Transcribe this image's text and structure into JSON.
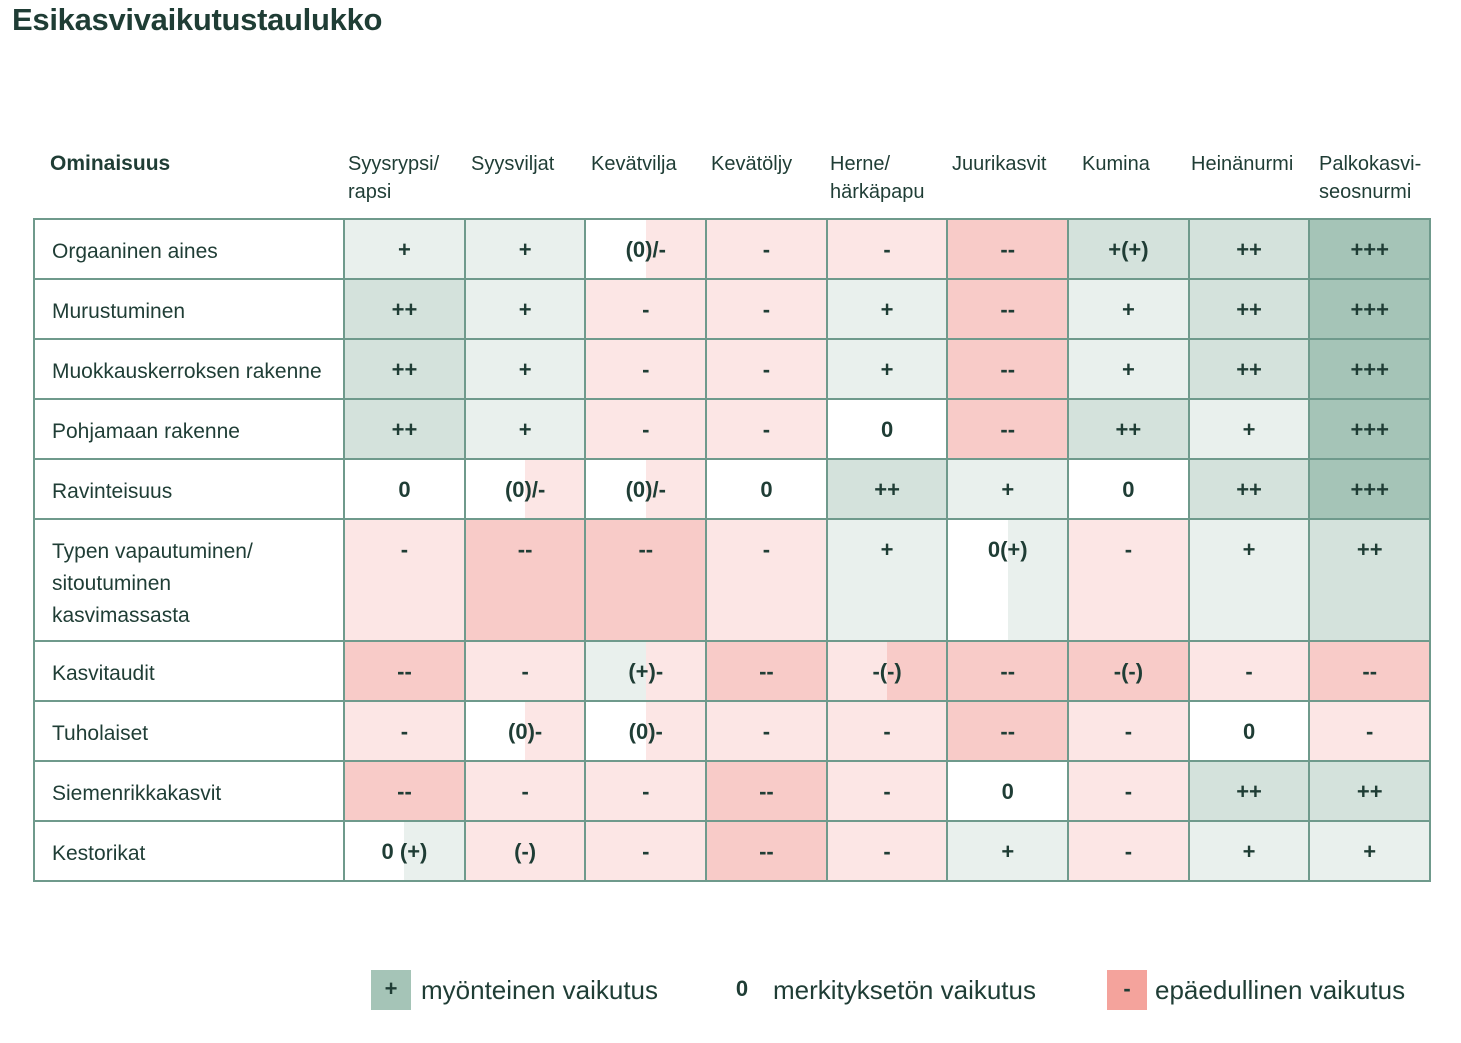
{
  "title": "Esikasvivaikutustaulukko",
  "colors": {
    "pos1": "#e9f0ed",
    "pos2": "#d4e2dc",
    "pos3": "#a5c4b7",
    "neutral": "#ffffff",
    "neg1": "#fce6e5",
    "neg2": "#f8cbc8",
    "border": "#6f9a8c",
    "text": "#1f3d35"
  },
  "header": {
    "first": "Ominaisuus",
    "crops": [
      [
        "Syysrypsi/",
        "rapsi"
      ],
      [
        "Syysviljat",
        ""
      ],
      [
        "Kevätvilja",
        ""
      ],
      [
        "Kevätöljy",
        ""
      ],
      [
        "Herne/",
        "härkäpapu"
      ],
      [
        "Juurikasvit",
        ""
      ],
      [
        "Kumina",
        ""
      ],
      [
        "Heinänurmi",
        ""
      ],
      [
        "Palkokasvi-",
        "seosnurmi"
      ]
    ]
  },
  "rows": [
    {
      "label": [
        "Orgaaninen aines"
      ],
      "cells": [
        {
          "v": "+",
          "bg": [
            "pos1",
            "pos1"
          ]
        },
        {
          "v": "+",
          "bg": [
            "pos1",
            "pos1"
          ]
        },
        {
          "v": "(0)/-",
          "bg": [
            "neutral",
            "neg1"
          ]
        },
        {
          "v": "-",
          "bg": [
            "neg1",
            "neg1"
          ]
        },
        {
          "v": "-",
          "bg": [
            "neg1",
            "neg1"
          ]
        },
        {
          "v": "--",
          "bg": [
            "neg2",
            "neg2"
          ]
        },
        {
          "v": "+(+)",
          "bg": [
            "pos2",
            "pos2"
          ]
        },
        {
          "v": "++",
          "bg": [
            "pos2",
            "pos2"
          ]
        },
        {
          "v": "+++",
          "bg": [
            "pos3",
            "pos3"
          ]
        }
      ]
    },
    {
      "label": [
        "Murustuminen"
      ],
      "cells": [
        {
          "v": "++",
          "bg": [
            "pos2",
            "pos2"
          ]
        },
        {
          "v": "+",
          "bg": [
            "pos1",
            "pos1"
          ]
        },
        {
          "v": "-",
          "bg": [
            "neg1",
            "neg1"
          ]
        },
        {
          "v": "-",
          "bg": [
            "neg1",
            "neg1"
          ]
        },
        {
          "v": "+",
          "bg": [
            "pos1",
            "pos1"
          ]
        },
        {
          "v": "--",
          "bg": [
            "neg2",
            "neg2"
          ]
        },
        {
          "v": "+",
          "bg": [
            "pos1",
            "pos1"
          ]
        },
        {
          "v": "++",
          "bg": [
            "pos2",
            "pos2"
          ]
        },
        {
          "v": "+++",
          "bg": [
            "pos3",
            "pos3"
          ]
        }
      ]
    },
    {
      "label": [
        "Muokkauskerroksen rakenne"
      ],
      "cells": [
        {
          "v": "++",
          "bg": [
            "pos2",
            "pos2"
          ]
        },
        {
          "v": "+",
          "bg": [
            "pos1",
            "pos1"
          ]
        },
        {
          "v": "-",
          "bg": [
            "neg1",
            "neg1"
          ]
        },
        {
          "v": "-",
          "bg": [
            "neg1",
            "neg1"
          ]
        },
        {
          "v": "+",
          "bg": [
            "pos1",
            "pos1"
          ]
        },
        {
          "v": "--",
          "bg": [
            "neg2",
            "neg2"
          ]
        },
        {
          "v": "+",
          "bg": [
            "pos1",
            "pos1"
          ]
        },
        {
          "v": "++",
          "bg": [
            "pos2",
            "pos2"
          ]
        },
        {
          "v": "+++",
          "bg": [
            "pos3",
            "pos3"
          ]
        }
      ]
    },
    {
      "label": [
        "Pohjamaan rakenne"
      ],
      "cells": [
        {
          "v": "++",
          "bg": [
            "pos2",
            "pos2"
          ]
        },
        {
          "v": "+",
          "bg": [
            "pos1",
            "pos1"
          ]
        },
        {
          "v": "-",
          "bg": [
            "neg1",
            "neg1"
          ]
        },
        {
          "v": "-",
          "bg": [
            "neg1",
            "neg1"
          ]
        },
        {
          "v": "0",
          "bg": [
            "neutral",
            "neutral"
          ]
        },
        {
          "v": "--",
          "bg": [
            "neg2",
            "neg2"
          ]
        },
        {
          "v": "++",
          "bg": [
            "pos2",
            "pos2"
          ]
        },
        {
          "v": "+",
          "bg": [
            "pos1",
            "pos1"
          ]
        },
        {
          "v": "+++",
          "bg": [
            "pos3",
            "pos3"
          ]
        }
      ]
    },
    {
      "label": [
        "Ravinteisuus"
      ],
      "cells": [
        {
          "v": "0",
          "bg": [
            "neutral",
            "neutral"
          ]
        },
        {
          "v": "(0)/-",
          "bg": [
            "neutral",
            "neg1"
          ]
        },
        {
          "v": "(0)/-",
          "bg": [
            "neutral",
            "neg1"
          ]
        },
        {
          "v": "0",
          "bg": [
            "neutral",
            "neutral"
          ]
        },
        {
          "v": "++",
          "bg": [
            "pos2",
            "pos2"
          ]
        },
        {
          "v": "+",
          "bg": [
            "pos1",
            "pos1"
          ]
        },
        {
          "v": "0",
          "bg": [
            "neutral",
            "neutral"
          ]
        },
        {
          "v": "++",
          "bg": [
            "pos2",
            "pos2"
          ]
        },
        {
          "v": "+++",
          "bg": [
            "pos3",
            "pos3"
          ]
        }
      ]
    },
    {
      "label": [
        "Typen vapautuminen/",
        "sitoutuminen",
        "kasvimassasta"
      ],
      "cells": [
        {
          "v": "-",
          "bg": [
            "neg1",
            "neg1"
          ]
        },
        {
          "v": "--",
          "bg": [
            "neg2",
            "neg2"
          ]
        },
        {
          "v": "--",
          "bg": [
            "neg2",
            "neg2"
          ]
        },
        {
          "v": "-",
          "bg": [
            "neg1",
            "neg1"
          ]
        },
        {
          "v": "+",
          "bg": [
            "pos1",
            "pos1"
          ]
        },
        {
          "v": "0(+)",
          "bg": [
            "neutral",
            "pos1"
          ]
        },
        {
          "v": "-",
          "bg": [
            "neg1",
            "neg1"
          ]
        },
        {
          "v": "+",
          "bg": [
            "pos1",
            "pos1"
          ]
        },
        {
          "v": "++",
          "bg": [
            "pos2",
            "pos2"
          ]
        }
      ]
    },
    {
      "label": [
        "Kasvitaudit"
      ],
      "cells": [
        {
          "v": "--",
          "bg": [
            "neg2",
            "neg2"
          ]
        },
        {
          "v": "-",
          "bg": [
            "neg1",
            "neg1"
          ]
        },
        {
          "v": "(+)-",
          "bg": [
            "pos1",
            "neg1"
          ]
        },
        {
          "v": "--",
          "bg": [
            "neg2",
            "neg2"
          ]
        },
        {
          "v": "-(-)",
          "bg": [
            "neg1",
            "neg2"
          ]
        },
        {
          "v": "--",
          "bg": [
            "neg2",
            "neg2"
          ]
        },
        {
          "v": "-(-)",
          "bg": [
            "neg2",
            "neg2"
          ]
        },
        {
          "v": "-",
          "bg": [
            "neg1",
            "neg1"
          ]
        },
        {
          "v": "--",
          "bg": [
            "neg2",
            "neg2"
          ]
        }
      ]
    },
    {
      "label": [
        "Tuholaiset"
      ],
      "cells": [
        {
          "v": "-",
          "bg": [
            "neg1",
            "neg1"
          ]
        },
        {
          "v": "(0)-",
          "bg": [
            "neutral",
            "neg1"
          ]
        },
        {
          "v": "(0)-",
          "bg": [
            "neutral",
            "neg1"
          ]
        },
        {
          "v": "-",
          "bg": [
            "neg1",
            "neg1"
          ]
        },
        {
          "v": "-",
          "bg": [
            "neg1",
            "neg1"
          ]
        },
        {
          "v": "--",
          "bg": [
            "neg2",
            "neg2"
          ]
        },
        {
          "v": "-",
          "bg": [
            "neg1",
            "neg1"
          ]
        },
        {
          "v": "0",
          "bg": [
            "neutral",
            "neutral"
          ]
        },
        {
          "v": "-",
          "bg": [
            "neg1",
            "neg1"
          ]
        }
      ]
    },
    {
      "label": [
        "Siemenrikkakasvit"
      ],
      "cells": [
        {
          "v": "--",
          "bg": [
            "neg2",
            "neg2"
          ]
        },
        {
          "v": "-",
          "bg": [
            "neg1",
            "neg1"
          ]
        },
        {
          "v": "-",
          "bg": [
            "neg1",
            "neg1"
          ]
        },
        {
          "v": "--",
          "bg": [
            "neg2",
            "neg2"
          ]
        },
        {
          "v": "-",
          "bg": [
            "neg1",
            "neg1"
          ]
        },
        {
          "v": "0",
          "bg": [
            "neutral",
            "neutral"
          ]
        },
        {
          "v": "-",
          "bg": [
            "neg1",
            "neg1"
          ]
        },
        {
          "v": "++",
          "bg": [
            "pos2",
            "pos2"
          ]
        },
        {
          "v": "++",
          "bg": [
            "pos2",
            "pos2"
          ]
        }
      ]
    },
    {
      "label": [
        "Kestorikat"
      ],
      "cells": [
        {
          "v": "0 (+)",
          "bg": [
            "neutral",
            "pos1"
          ]
        },
        {
          "v": "(-)",
          "bg": [
            "neg1",
            "neg1"
          ]
        },
        {
          "v": "-",
          "bg": [
            "neg1",
            "neg1"
          ]
        },
        {
          "v": "--",
          "bg": [
            "neg2",
            "neg2"
          ]
        },
        {
          "v": "-",
          "bg": [
            "neg1",
            "neg1"
          ]
        },
        {
          "v": "+",
          "bg": [
            "pos1",
            "pos1"
          ]
        },
        {
          "v": "-",
          "bg": [
            "neg1",
            "neg1"
          ]
        },
        {
          "v": "+",
          "bg": [
            "pos1",
            "pos1"
          ]
        },
        {
          "v": "+",
          "bg": [
            "pos1",
            "pos1"
          ]
        }
      ]
    }
  ],
  "legend": {
    "positive": {
      "symbol": "+",
      "label": "myönteinen vaikutus"
    },
    "neutral": {
      "symbol": "0",
      "label": "merkityksetön vaikutus"
    },
    "negative": {
      "symbol": "-",
      "label": "epäedullinen vaikutus"
    }
  }
}
